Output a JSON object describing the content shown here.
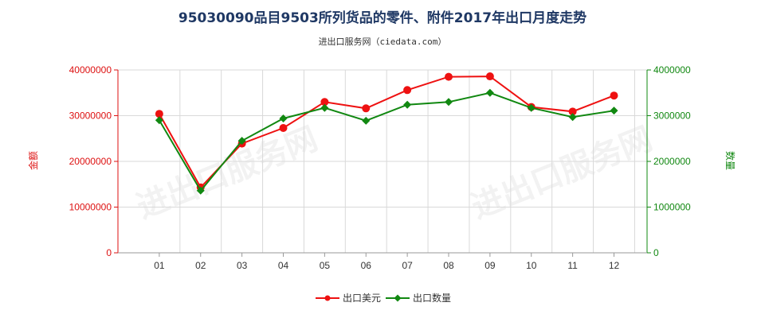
{
  "chart_data": {
    "type": "line",
    "title": "95030090品目9503所列货品的零件、附件2017年出口月度走势",
    "subtitle": "进出口服务网（ciedata.com）",
    "watermark": "进出口服务网",
    "categories": [
      "01",
      "02",
      "03",
      "04",
      "05",
      "06",
      "07",
      "08",
      "09",
      "10",
      "11",
      "12"
    ],
    "left_axis": {
      "label": "金额",
      "range": [
        0,
        40000000
      ],
      "ticks": [
        "0",
        "10000000",
        "20000000",
        "30000000",
        "40000000"
      ],
      "color": "#dd1111"
    },
    "right_axis": {
      "label": "数量",
      "range": [
        0,
        4000000
      ],
      "ticks": [
        "0",
        "1000000",
        "2000000",
        "3000000",
        "4000000"
      ],
      "color": "#118811"
    },
    "series": [
      {
        "name": "出口美元",
        "axis": "left",
        "color": "#ee1111",
        "values": [
          30400000,
          14300000,
          23900000,
          27300000,
          33000000,
          31600000,
          35600000,
          38500000,
          38600000,
          31900000,
          30900000,
          34400000
        ]
      },
      {
        "name": "出口数量",
        "axis": "right",
        "color": "#118811",
        "values": [
          2900000,
          1360000,
          2450000,
          2940000,
          3170000,
          2890000,
          3240000,
          3300000,
          3500000,
          3170000,
          2970000,
          3110000
        ]
      }
    ],
    "grid": true,
    "legend_position": "bottom"
  }
}
